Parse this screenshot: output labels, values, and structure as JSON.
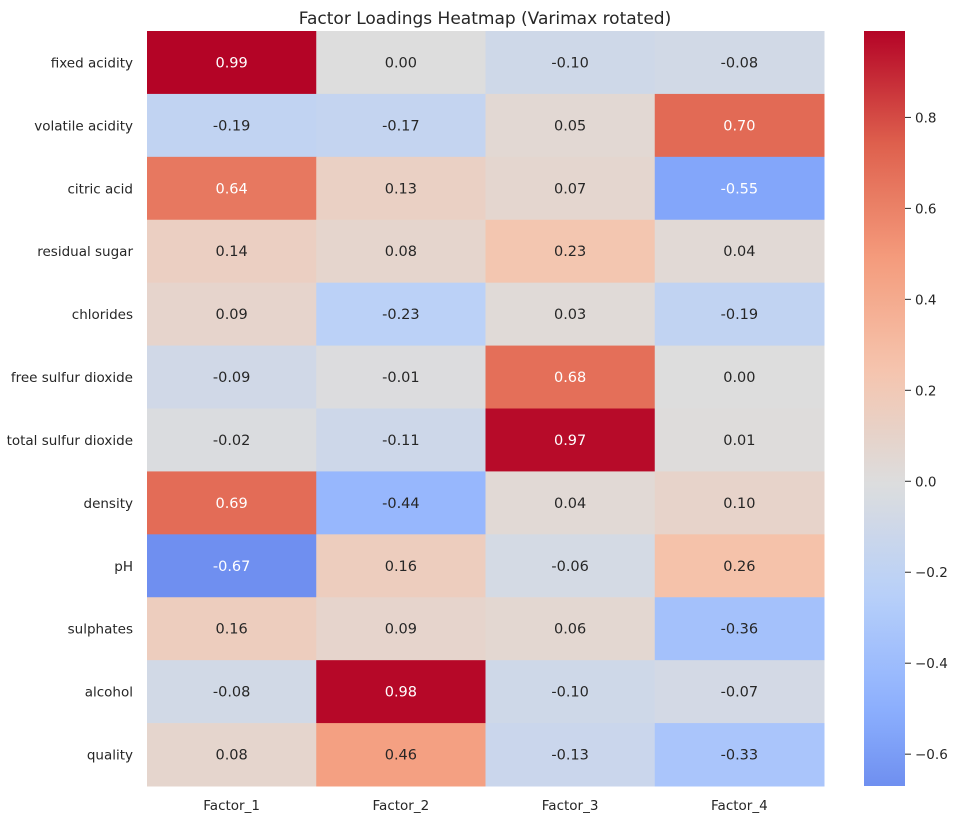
{
  "chart_data": {
    "type": "heatmap",
    "title": "Factor Loadings Heatmap (Varimax rotated)",
    "colormap": "coolwarm",
    "center": 0,
    "vmin": -0.67,
    "vmax": 0.99,
    "columns": [
      "Factor_1",
      "Factor_2",
      "Factor_3",
      "Factor_4"
    ],
    "rows": [
      "fixed acidity",
      "volatile acidity",
      "citric acid",
      "residual sugar",
      "chlorides",
      "free sulfur dioxide",
      "total sulfur dioxide",
      "density",
      "pH",
      "sulphates",
      "alcohol",
      "quality"
    ],
    "values": [
      [
        0.99,
        0.0,
        -0.1,
        -0.08
      ],
      [
        -0.19,
        -0.17,
        0.05,
        0.7
      ],
      [
        0.64,
        0.13,
        0.07,
        -0.55
      ],
      [
        0.14,
        0.08,
        0.23,
        0.04
      ],
      [
        0.09,
        -0.23,
        0.03,
        -0.19
      ],
      [
        -0.09,
        -0.01,
        0.68,
        -0.0
      ],
      [
        -0.02,
        -0.11,
        0.97,
        0.01
      ],
      [
        0.69,
        -0.44,
        0.04,
        0.1
      ],
      [
        -0.67,
        0.16,
        -0.06,
        0.26
      ],
      [
        0.16,
        0.09,
        0.06,
        -0.36
      ],
      [
        -0.08,
        0.98,
        -0.1,
        -0.07
      ],
      [
        0.08,
        0.46,
        -0.13,
        -0.33
      ]
    ],
    "colorbar_ticks": [
      0.8,
      0.6,
      0.4,
      0.2,
      0.0,
      -0.2,
      -0.4,
      -0.6
    ],
    "colorbar_tick_labels": [
      "0.8",
      "0.6",
      "0.4",
      "0.2",
      "0.0",
      "−0.2",
      "−0.4",
      "−0.6"
    ]
  }
}
